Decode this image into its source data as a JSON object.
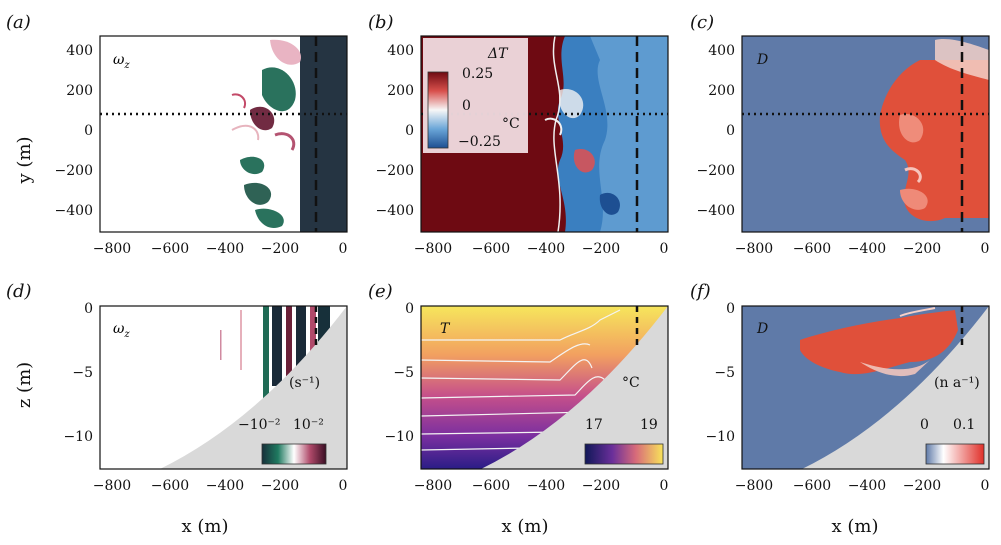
{
  "chart_data": [
    {
      "panel": "(a)",
      "type": "heatmap",
      "variable": "ω_z",
      "xlabel": "",
      "ylabel": "y (m)",
      "xlim": [
        -800,
        0
      ],
      "ylim": [
        -500,
        500
      ],
      "xticks": [
        "−800",
        "−600",
        "−400",
        "−200",
        "0"
      ],
      "yticks": [
        "400",
        "200",
        "0",
        "−200",
        "−400"
      ],
      "markers": {
        "dashed_x": -100,
        "dotted_y": 100
      }
    },
    {
      "panel": "(b)",
      "type": "heatmap",
      "variable": "ΔT",
      "xlim": [
        -800,
        0
      ],
      "ylim": [
        -500,
        500
      ],
      "xticks": [
        "−800",
        "−600",
        "−400",
        "−200",
        "0"
      ],
      "yticks": [
        "400",
        "200",
        "0",
        "−200",
        "−400"
      ],
      "colorbar": {
        "label": "ΔT",
        "unit": "°C",
        "ticks": [
          "0.25",
          "0",
          "−0.25"
        ],
        "range": [
          -0.25,
          0.25
        ]
      },
      "markers": {
        "dashed_x": -100,
        "dotted_y": 100
      }
    },
    {
      "panel": "(c)",
      "type": "heatmap",
      "variable": "D",
      "xlim": [
        -800,
        0
      ],
      "ylim": [
        -500,
        500
      ],
      "xticks": [
        "−800",
        "−600",
        "−400",
        "−200",
        "0"
      ],
      "yticks": [
        "400",
        "200",
        "0",
        "−200",
        "−400"
      ],
      "markers": {
        "dashed_x": -100,
        "dotted_y": 100
      }
    },
    {
      "panel": "(d)",
      "type": "heatmap",
      "variable": "ω_z",
      "xlabel": "x (m)",
      "ylabel": "z (m)",
      "xlim": [
        -800,
        0
      ],
      "ylim": [
        -12,
        0
      ],
      "xticks": [
        "−800",
        "−600",
        "−400",
        "−200",
        "0"
      ],
      "yticks": [
        "0",
        "−5",
        "−10"
      ],
      "colorbar": {
        "unit": "(s⁻¹)",
        "ticks": [
          "−10⁻²",
          "10⁻²"
        ],
        "range": [
          -0.01,
          0.01
        ]
      },
      "markers": {
        "dashed_x": -100
      }
    },
    {
      "panel": "(e)",
      "type": "heatmap",
      "variable": "T",
      "xlabel": "x (m)",
      "xlim": [
        -800,
        0
      ],
      "ylim": [
        -12,
        0
      ],
      "xticks": [
        "−800",
        "−600",
        "−400",
        "−200",
        "0"
      ],
      "yticks": [
        "0",
        "−5",
        "−10"
      ],
      "colorbar": {
        "unit": "°C",
        "ticks": [
          "17",
          "19"
        ],
        "range": [
          17,
          19
        ]
      },
      "markers": {
        "dashed_x": -100
      }
    },
    {
      "panel": "(f)",
      "type": "heatmap",
      "variable": "D",
      "xlabel": "x (m)",
      "xlim": [
        -800,
        0
      ],
      "ylim": [
        -12,
        0
      ],
      "xticks": [
        "−800",
        "−600",
        "−400",
        "−200",
        "0"
      ],
      "yticks": [
        "0",
        "−5",
        "−10"
      ],
      "colorbar": {
        "unit": "(n a⁻¹)",
        "ticks": [
          "0",
          "0.1"
        ],
        "range": [
          0,
          0.1
        ]
      },
      "markers": {
        "dashed_x": -100
      }
    }
  ],
  "labels": {
    "a": "(a)",
    "b": "(b)",
    "c": "(c)",
    "d": "(d)",
    "e": "(e)",
    "f": "(f)",
    "ylab_top": "y (m)",
    "ylab_bot": "z (m)",
    "xlab": "x (m)",
    "var_a": "ω",
    "var_a_sub": "z",
    "var_c": "D",
    "var_d": "ω",
    "var_d_sub": "z",
    "var_e": "T",
    "var_f": "D",
    "cb_b_title": "ΔT",
    "cb_b_unit": "°C",
    "cb_b_t1": "0.25",
    "cb_b_t2": "0",
    "cb_b_t3": "−0.25",
    "cb_d_unit": "(s⁻¹)",
    "cb_d_lo": "−10⁻²",
    "cb_d_hi": "10⁻²",
    "cb_e_unit": "°C",
    "cb_e_lo": "17",
    "cb_e_hi": "19",
    "cb_f_unit": "(n a⁻¹)",
    "cb_f_lo": "0",
    "cb_f_hi": "0.1"
  },
  "colors": {
    "warm_dark": "#6e0a12",
    "cool": "#3a7fc0",
    "dye_bg": "#5f7aa8",
    "dye": "#e0503a",
    "slope": "#d9d9d9",
    "vort_dark": "#1a2a38",
    "vort_green": "#1f6b55"
  }
}
